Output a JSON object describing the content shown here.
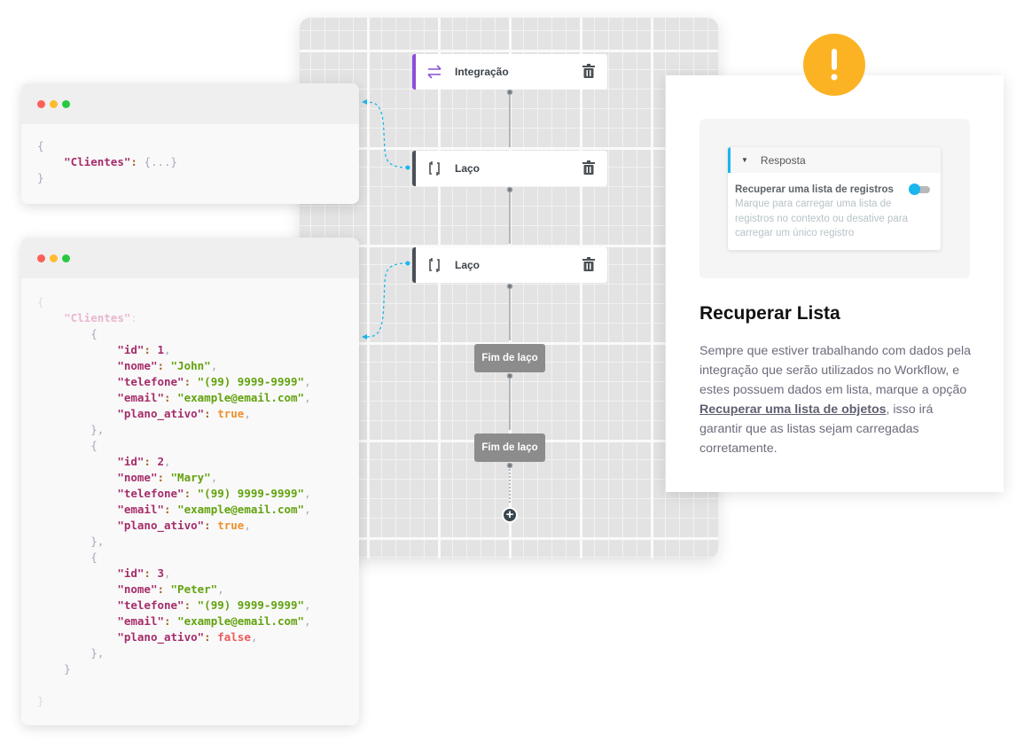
{
  "colors": {
    "accent": "#1ab6ee",
    "warning": "#fbb324",
    "integration": "#8a4fd6"
  },
  "window_collapsed": {
    "dots": [
      "#fe5f57",
      "#febc2e",
      "#28c840"
    ],
    "lines": [
      [
        [
          "p",
          "{"
        ]
      ],
      [
        [
          "p",
          "    "
        ],
        [
          "k",
          "\"Clientes\""
        ],
        [
          "c",
          ": "
        ],
        [
          "p",
          "{...}"
        ]
      ],
      [
        [
          "p",
          "}"
        ]
      ]
    ]
  },
  "window_expanded": {
    "lines": [
      [
        [
          "fp",
          "{"
        ]
      ],
      [
        [
          "fp",
          "    "
        ],
        [
          "fk",
          "\"Clientes\""
        ],
        [
          "fp",
          ":"
        ]
      ],
      [
        [
          "p",
          "        {"
        ]
      ],
      [
        [
          "p",
          "            "
        ],
        [
          "k",
          "\"id\""
        ],
        [
          "c",
          ": "
        ],
        [
          "n",
          "1"
        ],
        [
          "p",
          ","
        ]
      ],
      [
        [
          "p",
          "            "
        ],
        [
          "k",
          "\"nome\""
        ],
        [
          "c",
          ": "
        ],
        [
          "s",
          "\"John\""
        ],
        [
          "p",
          ","
        ]
      ],
      [
        [
          "p",
          "            "
        ],
        [
          "k",
          "\"telefone\""
        ],
        [
          "c",
          ": "
        ],
        [
          "s",
          "\"(99) 9999-9999\""
        ],
        [
          "p",
          ","
        ]
      ],
      [
        [
          "p",
          "            "
        ],
        [
          "k",
          "\"email\""
        ],
        [
          "c",
          ": "
        ],
        [
          "s",
          "\"example@email.com\""
        ],
        [
          "p",
          ","
        ]
      ],
      [
        [
          "p",
          "            "
        ],
        [
          "k",
          "\"plano_ativo\""
        ],
        [
          "c",
          ": "
        ],
        [
          "b",
          "true"
        ],
        [
          "p",
          ","
        ]
      ],
      [
        [
          "p",
          "        },"
        ]
      ],
      [
        [
          "p",
          "        {"
        ]
      ],
      [
        [
          "p",
          "            "
        ],
        [
          "k",
          "\"id\""
        ],
        [
          "c",
          ": "
        ],
        [
          "n",
          "2"
        ],
        [
          "p",
          ","
        ]
      ],
      [
        [
          "p",
          "            "
        ],
        [
          "k",
          "\"nome\""
        ],
        [
          "c",
          ": "
        ],
        [
          "s",
          "\"Mary\""
        ],
        [
          "p",
          ","
        ]
      ],
      [
        [
          "p",
          "            "
        ],
        [
          "k",
          "\"telefone\""
        ],
        [
          "c",
          ": "
        ],
        [
          "s",
          "\"(99) 9999-9999\""
        ],
        [
          "p",
          ","
        ]
      ],
      [
        [
          "p",
          "            "
        ],
        [
          "k",
          "\"email\""
        ],
        [
          "c",
          ": "
        ],
        [
          "s",
          "\"example@email.com\""
        ],
        [
          "p",
          ","
        ]
      ],
      [
        [
          "p",
          "            "
        ],
        [
          "k",
          "\"plano_ativo\""
        ],
        [
          "c",
          ": "
        ],
        [
          "b",
          "true"
        ],
        [
          "p",
          ","
        ]
      ],
      [
        [
          "p",
          "        },"
        ]
      ],
      [
        [
          "p",
          "        {"
        ]
      ],
      [
        [
          "p",
          "            "
        ],
        [
          "k",
          "\"id\""
        ],
        [
          "c",
          ": "
        ],
        [
          "n",
          "3"
        ],
        [
          "p",
          ","
        ]
      ],
      [
        [
          "p",
          "            "
        ],
        [
          "k",
          "\"nome\""
        ],
        [
          "c",
          ": "
        ],
        [
          "s",
          "\"Peter\""
        ],
        [
          "p",
          ","
        ]
      ],
      [
        [
          "p",
          "            "
        ],
        [
          "k",
          "\"telefone\""
        ],
        [
          "c",
          ": "
        ],
        [
          "s",
          "\"(99) 9999-9999\""
        ],
        [
          "p",
          ","
        ]
      ],
      [
        [
          "p",
          "            "
        ],
        [
          "k",
          "\"email\""
        ],
        [
          "c",
          ": "
        ],
        [
          "s",
          "\"example@email.com\""
        ],
        [
          "p",
          ","
        ]
      ],
      [
        [
          "p",
          "            "
        ],
        [
          "k",
          "\"plano_ativo\""
        ],
        [
          "c",
          ": "
        ],
        [
          "f",
          "false"
        ],
        [
          "p",
          ","
        ]
      ],
      [
        [
          "p",
          "        },"
        ]
      ],
      [
        [
          "p",
          "    }"
        ]
      ],
      [
        [
          "p",
          " "
        ]
      ],
      [
        [
          "fp",
          "}"
        ]
      ]
    ]
  },
  "workflow": {
    "nodes": [
      {
        "label": "Integração",
        "icon": "swap-arrows-icon"
      },
      {
        "label": "Laço",
        "icon": "loop-icon"
      },
      {
        "label": "Laço",
        "icon": "loop-icon"
      }
    ],
    "end_nodes": [
      "Fim de laço",
      "Fim de laço"
    ]
  },
  "info": {
    "section_header": "Resposta",
    "option_label": "Recuperar uma lista de registros",
    "option_help": "Marque para carregar uma lista de registros no contexto ou desative para carregar um único registro",
    "option_enabled": true,
    "title": "Recuperar Lista",
    "para_before": "Sempre que estiver trabalhando com dados pela integração que serão utilizados no Workflow, e estes possuem dados em lista, marque a opção ",
    "para_link": "Recuperar uma lista de objetos",
    "para_after": ", isso irá garantir que as listas sejam carregadas corretamente."
  }
}
